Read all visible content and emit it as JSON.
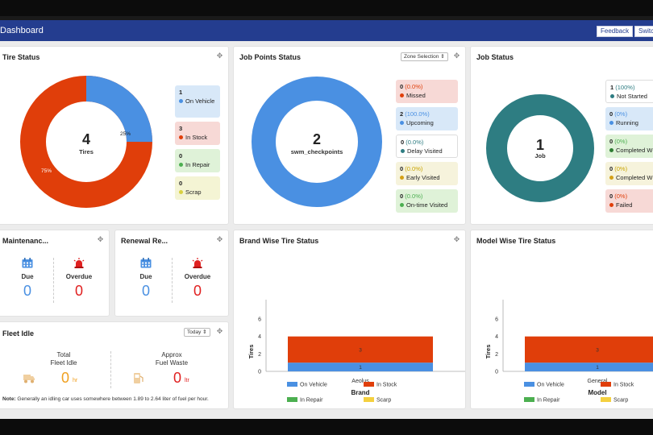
{
  "header": {
    "title": "Dashboard",
    "feedback_label": "Feedback",
    "switch_label": "Switch"
  },
  "colors": {
    "header": "#243d8f",
    "blue": "#4a90e2",
    "red": "#e03e0a",
    "teal": "#2e7d82",
    "green": "#4caf50",
    "yellow": "#f4d03f"
  },
  "tire_status": {
    "title": "Tire Status",
    "center_value": "4",
    "center_label": "Tires",
    "pct_a": "25%",
    "pct_b": "75%",
    "legend": [
      {
        "value": "1",
        "label": "On Vehicle"
      },
      {
        "value": "3",
        "label": "In Stock"
      },
      {
        "value": "0",
        "label": "In Repair"
      },
      {
        "value": "0",
        "label": "Scrap"
      }
    ]
  },
  "job_points": {
    "title": "Job Points Status",
    "zone_label": "Zone Selection",
    "center_value": "2",
    "center_label": "swm_checkpoints",
    "legend": [
      {
        "value": "0",
        "pct": "(0.0%)",
        "label": "Missed"
      },
      {
        "value": "2",
        "pct": "(100.0%)",
        "label": "Upcoming"
      },
      {
        "value": "0",
        "pct": "(0.0%)",
        "label": "Delay Visited"
      },
      {
        "value": "0",
        "pct": "(0.0%)",
        "label": "Early Visited"
      },
      {
        "value": "0",
        "pct": "(0.0%)",
        "label": "On-time Visited"
      }
    ]
  },
  "job_status": {
    "title": "Job Status",
    "center_value": "1",
    "center_label": "Job",
    "legend": [
      {
        "value": "1",
        "pct": "(100%)",
        "label": "Not Started"
      },
      {
        "value": "0",
        "pct": "(0%)",
        "label": "Running"
      },
      {
        "value": "0",
        "pct": "(0%)",
        "label": "Completed W"
      },
      {
        "value": "0",
        "pct": "(0%)",
        "label": "Completed W"
      },
      {
        "value": "0",
        "pct": "(0%)",
        "label": "Failed"
      }
    ]
  },
  "maintenance": {
    "title": "Maintenanc...",
    "due_label": "Due",
    "due_value": "0",
    "overdue_label": "Overdue",
    "overdue_value": "0"
  },
  "renewal": {
    "title": "Renewal Re...",
    "due_label": "Due",
    "due_value": "0",
    "overdue_label": "Overdue",
    "overdue_value": "0"
  },
  "fleet_idle": {
    "title": "Fleet Idle",
    "period": "Today",
    "total_label_1": "Total",
    "total_label_2": "Fleet Idle",
    "total_value": "0",
    "total_unit": "hr",
    "waste_label_1": "Approx",
    "waste_label_2": "Fuel Waste",
    "waste_value": "0",
    "waste_unit": "ltr",
    "note_label": "Note:",
    "note_text": "Generally an idling car uses somewhere between 1.89 to 2.64 liter of fuel per hour."
  },
  "brand_chart": {
    "title": "Brand Wise Tire Status"
  },
  "model_chart": {
    "title": "Model Wise Tire Status"
  },
  "chart_data": [
    {
      "type": "bar",
      "stacked": true,
      "title": "Brand Wise Tire Status",
      "categories": [
        "Aeolus"
      ],
      "series": [
        {
          "name": "On Vehicle",
          "values": [
            1
          ]
        },
        {
          "name": "In Stock",
          "values": [
            3
          ]
        },
        {
          "name": "In Repair",
          "values": [
            0
          ]
        },
        {
          "name": "Scarp",
          "values": [
            0
          ]
        }
      ],
      "segment_labels": [
        "1",
        "3"
      ],
      "xlabel": "Brand",
      "ylabel": "Tires",
      "ylim": [
        0,
        6
      ],
      "yticks": [
        "0",
        "2",
        "4",
        "6"
      ],
      "legend_position": "bottom"
    },
    {
      "type": "bar",
      "stacked": true,
      "title": "Model Wise Tire Status",
      "categories": [
        "General"
      ],
      "series": [
        {
          "name": "On Vehicle",
          "values": [
            1
          ]
        },
        {
          "name": "In Stock",
          "values": [
            3
          ]
        },
        {
          "name": "In Repair",
          "values": [
            0
          ]
        },
        {
          "name": "Scarp",
          "values": [
            0
          ]
        }
      ],
      "segment_labels": [
        "1",
        "3"
      ],
      "xlabel": "Model",
      "ylabel": "Tires",
      "ylim": [
        0,
        6
      ],
      "yticks": [
        "0",
        "2",
        "4",
        "6"
      ],
      "legend_position": "bottom"
    }
  ]
}
